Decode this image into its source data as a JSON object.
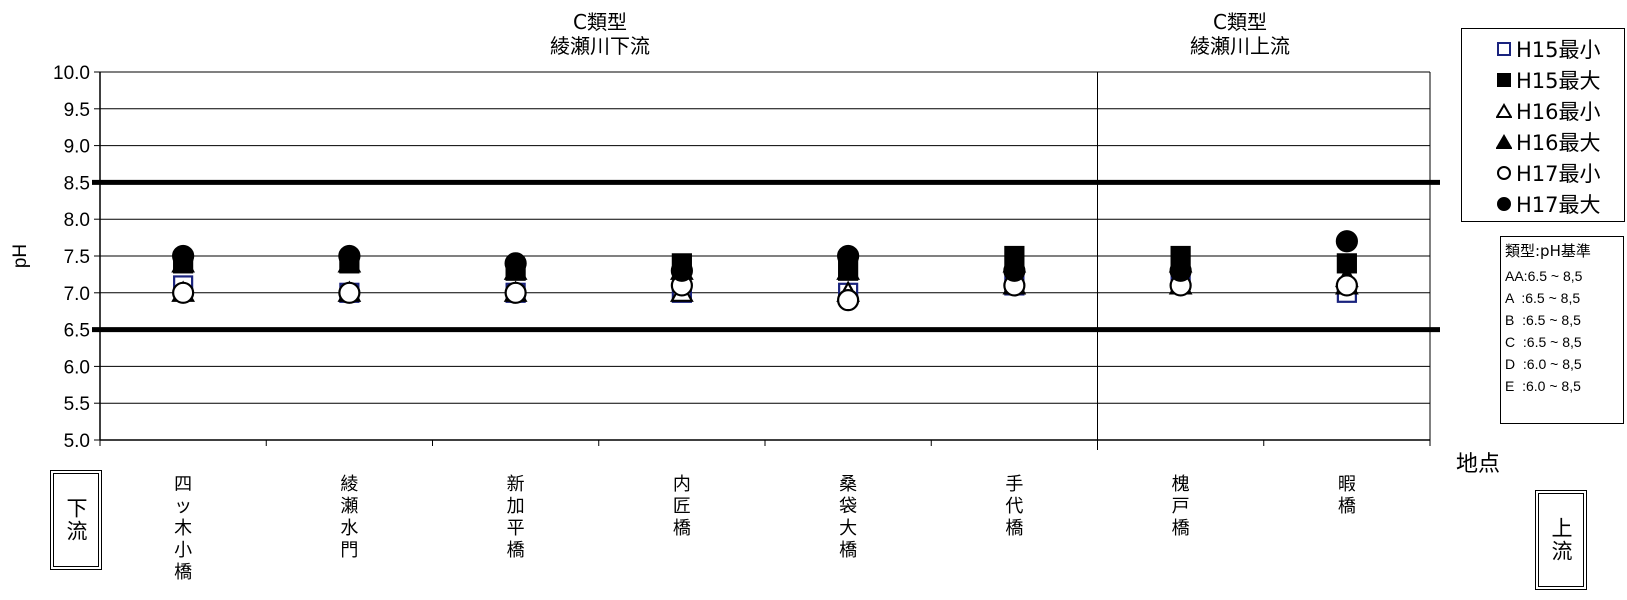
{
  "chart_data": {
    "type": "scatter",
    "ylabel": "pH",
    "xlabel": "地点",
    "ylim": [
      5.0,
      10.0
    ],
    "yticks": [
      "5.0",
      "5.5",
      "6.0",
      "6.5",
      "7.0",
      "7.5",
      "8.0",
      "8.5",
      "9.0",
      "9.5",
      "10.0"
    ],
    "categories": [
      "四ッ木小橋",
      "綾瀬水門",
      "新加平橋",
      "内匠橋",
      "桑袋大橋",
      "手代橋",
      "槐戸橋",
      "暇橋"
    ],
    "standard_lines": [
      6.5,
      8.5
    ],
    "regions": [
      {
        "line1": "C類型",
        "line2": "綾瀬川下流",
        "from_index": 0,
        "to_index": 5
      },
      {
        "line1": "C類型",
        "line2": "綾瀬川上流",
        "from_index": 6,
        "to_index": 7
      }
    ],
    "series": [
      {
        "name": "H15最小",
        "marker": "square-open",
        "color": "#1a237e",
        "values": [
          7.1,
          7.0,
          7.0,
          7.0,
          7.0,
          7.1,
          7.2,
          7.0
        ]
      },
      {
        "name": "H15最大",
        "marker": "square-filled",
        "color": "#000000",
        "values": [
          7.4,
          7.4,
          7.3,
          7.4,
          7.3,
          7.5,
          7.5,
          7.4
        ]
      },
      {
        "name": "H16最小",
        "marker": "triangle-open",
        "color": "#000000",
        "values": [
          7.0,
          7.0,
          7.0,
          7.0,
          7.0,
          7.1,
          7.1,
          7.1
        ]
      },
      {
        "name": "H16最大",
        "marker": "triangle-filled",
        "color": "#000000",
        "values": [
          7.4,
          7.4,
          7.3,
          7.3,
          7.3,
          7.4,
          7.4,
          7.2
        ]
      },
      {
        "name": "H17最小",
        "marker": "circle-open",
        "color": "#000000",
        "values": [
          7.0,
          7.0,
          7.0,
          7.1,
          6.9,
          7.1,
          7.1,
          7.1
        ]
      },
      {
        "name": "H17最大",
        "marker": "circle-filled",
        "color": "#000000",
        "values": [
          7.5,
          7.5,
          7.4,
          7.3,
          7.5,
          7.3,
          7.3,
          7.7
        ]
      }
    ]
  },
  "standards": {
    "title": "類型:pH基準",
    "rows": [
      "AA:6.5 ~ 8,5",
      "A  :6.5 ~ 8,5",
      "B  :6.5 ~ 8,5",
      "C  :6.5 ~ 8,5",
      "D  :6.0 ~ 8,5",
      "E  :6.0 ~ 8,5"
    ]
  },
  "flow": {
    "downstream": "下流",
    "upstream": "上流"
  }
}
